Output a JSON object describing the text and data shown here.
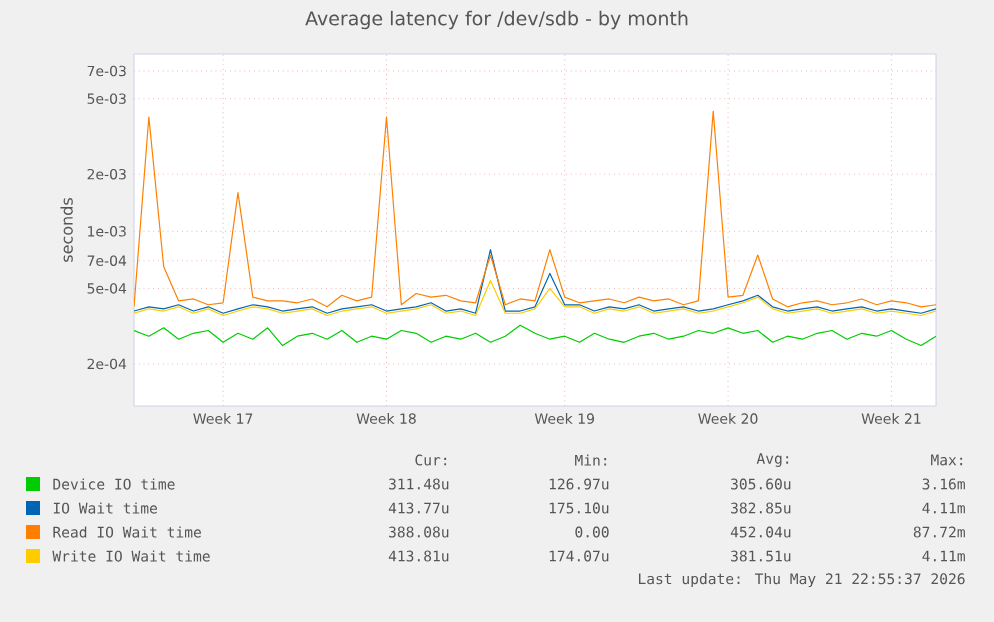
{
  "chart_data": {
    "type": "line",
    "title": "Average latency for /dev/sdb - by month",
    "ylabel": "seconds",
    "log": true,
    "grid": true,
    "legend": "bottom",
    "marker": "none",
    "line_style": "solid",
    "categories": [
      null,
      null,
      null,
      null,
      null,
      null,
      "Week 17",
      null,
      null,
      null,
      null,
      null,
      null,
      null,
      null,
      null,
      null,
      "Week 18",
      null,
      null,
      null,
      null,
      null,
      null,
      null,
      null,
      null,
      null,
      null,
      "Week 19",
      null,
      null,
      null,
      null,
      null,
      null,
      null,
      null,
      null,
      null,
      "Week 20",
      null,
      null,
      null,
      null,
      null,
      null,
      null,
      null,
      null,
      null,
      "Week 21",
      null,
      null,
      null
    ],
    "ylim": [
      0.00012,
      0.0086
    ],
    "yticks": [
      {
        "value": 0.0002,
        "label": "2e-04"
      },
      {
        "value": 0.0005,
        "label": "5e-04"
      },
      {
        "value": 0.0007,
        "label": "7e-04"
      },
      {
        "value": 0.001,
        "label": "1e-03"
      },
      {
        "value": 0.002,
        "label": "2e-03"
      },
      {
        "value": 0.005,
        "label": "5e-03"
      },
      {
        "value": 0.007,
        "label": "7e-03"
      }
    ],
    "series": [
      {
        "name": "Device IO time",
        "color": "#00cc00",
        "values": [
          0.0003,
          0.00028,
          0.00031,
          0.00027,
          0.00029,
          0.0003,
          0.00026,
          0.00029,
          0.00027,
          0.00031,
          0.00025,
          0.00028,
          0.00029,
          0.00027,
          0.0003,
          0.00026,
          0.00028,
          0.00027,
          0.0003,
          0.00029,
          0.00026,
          0.00028,
          0.00027,
          0.00029,
          0.00026,
          0.00028,
          0.00032,
          0.00029,
          0.00027,
          0.00028,
          0.00026,
          0.00029,
          0.00027,
          0.00026,
          0.00028,
          0.00029,
          0.00027,
          0.00028,
          0.0003,
          0.00029,
          0.00031,
          0.00029,
          0.0003,
          0.00026,
          0.00028,
          0.00027,
          0.00029,
          0.0003,
          0.00027,
          0.00029,
          0.00028,
          0.0003,
          0.00027,
          0.00025,
          0.00028
        ]
      },
      {
        "name": "IO Wait time",
        "color": "#0066b3",
        "values": [
          0.00038,
          0.0004,
          0.00039,
          0.00041,
          0.00038,
          0.0004,
          0.00037,
          0.00039,
          0.00041,
          0.0004,
          0.00038,
          0.00039,
          0.0004,
          0.00037,
          0.00039,
          0.0004,
          0.00041,
          0.00038,
          0.00039,
          0.0004,
          0.00042,
          0.00038,
          0.00039,
          0.00037,
          0.0008,
          0.00038,
          0.00038,
          0.0004,
          0.0006,
          0.00041,
          0.00041,
          0.00038,
          0.0004,
          0.00039,
          0.00041,
          0.00038,
          0.00039,
          0.0004,
          0.00038,
          0.00039,
          0.00041,
          0.00043,
          0.00046,
          0.0004,
          0.00038,
          0.00039,
          0.0004,
          0.00038,
          0.00039,
          0.0004,
          0.00038,
          0.00039,
          0.00038,
          0.00037,
          0.00039
        ]
      },
      {
        "name": "Read IO Wait time",
        "color": "#ff8000",
        "values": [
          0.0004,
          0.004,
          0.00065,
          0.00043,
          0.00044,
          0.00041,
          0.00042,
          0.0016,
          0.00045,
          0.00043,
          0.00043,
          0.00042,
          0.00044,
          0.0004,
          0.00046,
          0.00043,
          0.00045,
          0.004,
          0.00041,
          0.00047,
          0.00045,
          0.00046,
          0.00043,
          0.00042,
          0.00075,
          0.00041,
          0.00044,
          0.00043,
          0.0008,
          0.00045,
          0.00042,
          0.00043,
          0.00044,
          0.00042,
          0.00045,
          0.00043,
          0.00044,
          0.00041,
          0.00043,
          0.0043,
          0.00045,
          0.00046,
          0.00075,
          0.00044,
          0.0004,
          0.00042,
          0.00043,
          0.00041,
          0.00042,
          0.00044,
          0.00041,
          0.00043,
          0.00042,
          0.0004,
          0.00041
        ]
      },
      {
        "name": "Write IO Wait time",
        "color": "#ffcc00",
        "values": [
          0.00037,
          0.00039,
          0.00038,
          0.0004,
          0.00037,
          0.00039,
          0.00036,
          0.00038,
          0.0004,
          0.00039,
          0.00037,
          0.00038,
          0.00039,
          0.00036,
          0.00038,
          0.00039,
          0.0004,
          0.00037,
          0.00038,
          0.00039,
          0.00041,
          0.00037,
          0.00038,
          0.00036,
          0.00055,
          0.00037,
          0.00037,
          0.00039,
          0.0005,
          0.0004,
          0.0004,
          0.00037,
          0.00039,
          0.00038,
          0.0004,
          0.00037,
          0.00038,
          0.00039,
          0.00037,
          0.00038,
          0.0004,
          0.00042,
          0.00045,
          0.00039,
          0.00037,
          0.00038,
          0.00039,
          0.00037,
          0.00038,
          0.00039,
          0.00037,
          0.00038,
          0.00037,
          0.00036,
          0.00038
        ]
      }
    ],
    "annotations": [
      "Cur:",
      "Min:",
      "Avg:",
      "Max:",
      "311.48u",
      "126.97u",
      "305.60u",
      "3.16m",
      "413.77u",
      "175.10u",
      "382.85u",
      "4.11m",
      "388.08u",
      "0.00",
      "452.04u",
      "87.72m",
      "413.81u",
      "174.07u",
      "381.51u",
      "4.11m",
      "Last update: Thu May 21 22:55:37 2026"
    ]
  }
}
